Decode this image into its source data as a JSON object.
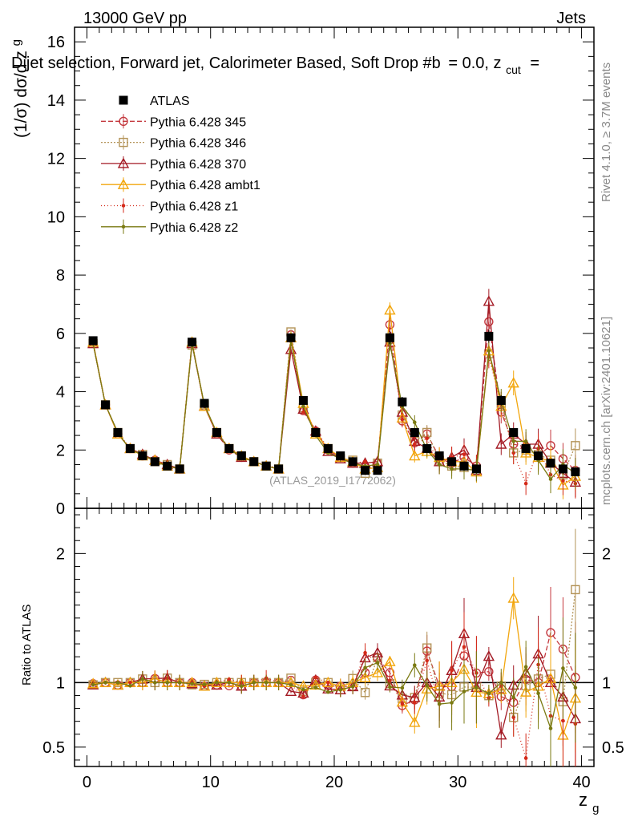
{
  "header": {
    "energy": "13000 GeV pp",
    "category": "Jets",
    "title_part1": "Dijet selection, Forward jet, Calorimeter Based, Soft Drop #b",
    "title_part2": "= 0.0, z",
    "title_sub": "cut",
    "title_part3": "="
  },
  "side": {
    "rivet": "Rivet 4.1.0, ≥ 3.7M events",
    "mcplots": "mcplots.cern.ch [arXiv:2401.10621]"
  },
  "watermark": "(ATLAS_2019_I1772062)",
  "chart_data": {
    "type": "line",
    "title": "Dijet selection, Forward jet, Calorimeter Based, Soft Drop",
    "ylabel_main": "(1/σ) dσ/d z",
    "ylabel_main_sub": "g",
    "ylabel_ratio": "Ratio to ATLAS",
    "xlabel": "z",
    "xlabel_sub": "g",
    "xlim": [
      -1,
      41
    ],
    "ylim_main": [
      0,
      16.5
    ],
    "ylim_ratio": [
      0.35,
      2.35
    ],
    "x_ticks": [
      "0",
      "10",
      "20",
      "30",
      "40"
    ],
    "y_ticks_main": [
      "0",
      "2",
      "4",
      "6",
      "8",
      "10",
      "12",
      "14",
      "16"
    ],
    "y_ticks_ratio": [
      "0.5",
      "1",
      "2"
    ],
    "x": [
      0.5,
      1.5,
      2.5,
      3.5,
      4.5,
      5.5,
      6.5,
      7.5,
      8.5,
      9.5,
      10.5,
      11.5,
      12.5,
      13.5,
      14.5,
      15.5,
      16.5,
      17.5,
      18.5,
      19.5,
      20.5,
      21.5,
      22.5,
      23.5,
      24.5,
      25.5,
      26.5,
      27.5,
      28.5,
      29.5,
      30.5,
      31.5,
      32.5,
      33.5,
      34.5,
      35.5,
      36.5,
      37.5,
      38.5,
      39.5
    ],
    "data": {
      "name": "ATLAS",
      "values": [
        5.75,
        3.55,
        2.6,
        2.05,
        1.8,
        1.6,
        1.45,
        1.35,
        5.7,
        3.6,
        2.6,
        2.05,
        1.8,
        1.6,
        1.45,
        1.35,
        5.85,
        3.7,
        2.6,
        2.05,
        1.8,
        1.6,
        1.3,
        1.3,
        5.85,
        3.65,
        2.6,
        2.05,
        1.8,
        1.6,
        1.45,
        1.35,
        5.9,
        3.7,
        2.6,
        2.05,
        1.8,
        1.55,
        1.35,
        1.25
      ]
    },
    "series": [
      {
        "name": "Pythia 6.428 345",
        "color": "#c4393f",
        "dash": "6,3",
        "marker": "circle",
        "values": [
          5.7,
          3.55,
          2.55,
          2.05,
          1.8,
          1.65,
          1.45,
          1.35,
          5.7,
          3.5,
          2.55,
          2.0,
          1.75,
          1.6,
          1.45,
          1.35,
          5.95,
          3.35,
          2.65,
          2.0,
          1.75,
          1.55,
          1.4,
          1.55,
          6.3,
          3.0,
          2.25,
          2.55,
          1.75,
          1.55,
          1.75,
          1.45,
          6.4,
          3.3,
          2.2,
          2.1,
          1.8,
          2.15,
          1.7,
          1.3
        ]
      },
      {
        "name": "Pythia 6.428 346",
        "color": "#b49459",
        "dash": "2,2",
        "marker": "square",
        "values": [
          5.65,
          3.55,
          2.6,
          2.05,
          1.85,
          1.6,
          1.5,
          1.35,
          5.6,
          3.55,
          2.6,
          2.05,
          1.8,
          1.6,
          1.45,
          1.35,
          6.05,
          3.45,
          2.6,
          2.05,
          1.7,
          1.65,
          1.2,
          1.55,
          5.8,
          3.2,
          2.3,
          2.6,
          1.65,
          1.45,
          1.4,
          1.3,
          5.3,
          3.6,
          1.9,
          2.0,
          1.85,
          1.65,
          1.15,
          2.15
        ]
      },
      {
        "name": "Pythia 6.428 370",
        "color": "#a31a24",
        "dash": "",
        "marker": "triangle",
        "values": [
          5.65,
          3.55,
          2.55,
          2.05,
          1.85,
          1.65,
          1.5,
          1.35,
          5.65,
          3.5,
          2.55,
          2.05,
          1.75,
          1.6,
          1.45,
          1.35,
          5.45,
          3.4,
          2.65,
          1.95,
          1.7,
          1.55,
          1.55,
          1.6,
          5.7,
          3.3,
          2.3,
          2.05,
          1.6,
          1.75,
          2.0,
          1.3,
          7.1,
          2.2,
          2.55,
          2.2,
          2.2,
          1.55,
          1.2,
          0.9
        ]
      },
      {
        "name": "Pythia 6.428 ambt1",
        "color": "#f2a60d",
        "dash": "",
        "marker": "triangle",
        "values": [
          5.7,
          3.55,
          2.55,
          2.05,
          1.8,
          1.65,
          1.45,
          1.35,
          5.7,
          3.5,
          2.6,
          2.05,
          1.8,
          1.6,
          1.45,
          1.35,
          5.85,
          3.6,
          2.55,
          2.05,
          1.75,
          1.6,
          1.35,
          1.4,
          6.8,
          3.1,
          1.8,
          1.95,
          1.75,
          1.6,
          1.6,
          1.25,
          5.4,
          3.5,
          4.3,
          1.9,
          1.75,
          1.6,
          0.8,
          1.1
        ]
      },
      {
        "name": "Pythia 6.428 z1",
        "color": "#d42a1a",
        "dash": "1,3",
        "marker": "dot",
        "values": [
          5.65,
          3.55,
          2.6,
          2.05,
          1.85,
          1.6,
          1.5,
          1.35,
          5.7,
          3.5,
          2.6,
          2.1,
          1.8,
          1.6,
          1.5,
          1.35,
          5.75,
          3.3,
          2.7,
          2.05,
          1.7,
          1.55,
          1.6,
          1.5,
          5.95,
          3.05,
          2.2,
          2.4,
          1.5,
          1.75,
          1.85,
          1.45,
          5.2,
          3.6,
          1.9,
          0.85,
          2.05,
          1.15,
          0.95,
          0.85
        ]
      },
      {
        "name": "Pythia 6.428 z2",
        "color": "#7a7a12",
        "dash": "",
        "marker": "dot",
        "values": [
          5.65,
          3.55,
          2.6,
          2.0,
          1.85,
          1.6,
          1.45,
          1.35,
          5.65,
          3.55,
          2.6,
          2.05,
          1.75,
          1.6,
          1.45,
          1.35,
          5.75,
          3.5,
          2.5,
          1.9,
          1.7,
          1.55,
          1.45,
          1.5,
          5.65,
          3.5,
          2.95,
          2.0,
          1.5,
          1.35,
          1.35,
          1.3,
          5.4,
          3.7,
          2.3,
          2.3,
          1.65,
          1.0,
          1.5,
          1.2
        ]
      }
    ]
  }
}
